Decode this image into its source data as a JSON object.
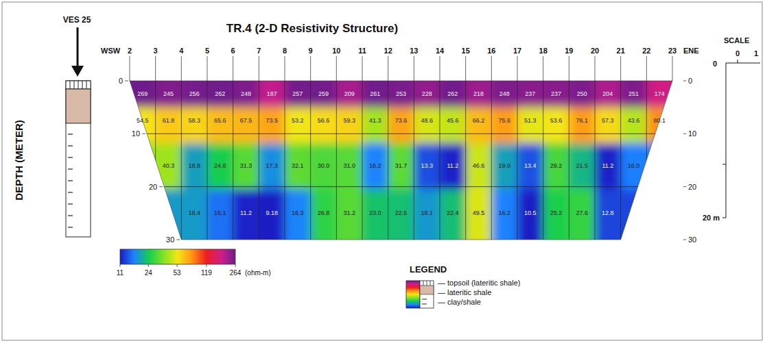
{
  "chart_data": {
    "type": "contour",
    "title": "TR.4 (2-D Resistivity Structure)",
    "y_label": "DEPTH (METER)",
    "x_left_label": "WSW",
    "x_right_label": "ENE",
    "xlim": [
      2,
      23
    ],
    "xticks": [
      2,
      3,
      4,
      5,
      6,
      7,
      8,
      9,
      10,
      11,
      12,
      13,
      14,
      15,
      16,
      17,
      18,
      19,
      20,
      21,
      22,
      23
    ],
    "ylim": [
      0,
      30
    ],
    "yticks": [
      0,
      10,
      20,
      30
    ],
    "y2lim": [
      0,
      30
    ],
    "y2ticks": [
      0,
      10,
      20,
      30
    ],
    "grid": true,
    "data_labels": true,
    "rows": [
      {
        "depth": 2.5,
        "x": [
          2.5,
          3.5,
          4.5,
          5.5,
          6.5,
          7.5,
          8.5,
          9.5,
          10.5,
          11.5,
          12.5,
          13.5,
          14.5,
          15.5,
          16.5,
          17.5,
          18.5,
          19.5,
          20.5,
          21.5,
          22.5
        ],
        "values": [
          269,
          245,
          256,
          262,
          248,
          187,
          257,
          259,
          209,
          261,
          253,
          228,
          262,
          218,
          248,
          237,
          237,
          250,
          204,
          251,
          174
        ]
      },
      {
        "depth": 7.5,
        "x": [
          2.5,
          3.5,
          4.5,
          5.5,
          6.5,
          7.5,
          8.5,
          9.5,
          10.5,
          11.5,
          12.5,
          13.5,
          14.5,
          15.5,
          16.5,
          17.5,
          18.5,
          19.5,
          20.5,
          21.5,
          22.5
        ],
        "values": [
          54.5,
          61.8,
          58.3,
          65.6,
          67.5,
          73.5,
          53.2,
          56.6,
          59.3,
          41.3,
          73.6,
          48.6,
          45.6,
          66.2,
          75.6,
          51.3,
          53.6,
          76.1,
          57.3,
          43.6,
          80.1
        ]
      },
      {
        "depth": 16,
        "x": [
          3.5,
          4.5,
          5.5,
          6.5,
          7.5,
          8.5,
          9.5,
          10.5,
          11.5,
          12.5,
          13.5,
          14.5,
          15.5,
          16.5,
          17.5,
          18.5,
          19.5,
          20.5,
          21.5
        ],
        "values": [
          40.3,
          18.8,
          24.8,
          31.3,
          17.3,
          32.1,
          30,
          31,
          16.2,
          31.7,
          13.3,
          11.2,
          46.6,
          19,
          13.4,
          29.2,
          21.5,
          11.2,
          16
        ],
        "value_labels": [
          "40.3",
          "18.8",
          "24.8",
          "31.3",
          "17.3",
          "32.1",
          "30.0",
          "31.0",
          "16.2",
          "31.7",
          "13.3",
          "11.2",
          "46.6",
          "19.0",
          "13.4",
          "29.2",
          "21.5",
          "11.2",
          "16.0"
        ]
      },
      {
        "depth": 25,
        "x": [
          4.5,
          5.5,
          6.5,
          7.5,
          8.5,
          9.5,
          10.5,
          11.5,
          12.5,
          13.5,
          14.5,
          15.5,
          16.5,
          17.5,
          18.5,
          19.5,
          20.5
        ],
        "values": [
          18.4,
          15.1,
          11.2,
          9.18,
          16.3,
          26.8,
          31.2,
          23,
          22.5,
          18.1,
          22.4,
          49.5,
          16.2,
          10.5,
          25.2,
          27.6,
          12.8
        ],
        "value_labels": [
          "18.4",
          "15.1",
          "11.2",
          "9.18",
          "16.3",
          "26.8",
          "31.2",
          "23.0",
          "22.5",
          "18.1",
          "22.4",
          "49.5",
          "16.2",
          "10.5",
          "25.2",
          "27.6",
          "12.8"
        ]
      }
    ],
    "colorbar": {
      "range": [
        11,
        264
      ],
      "ticks": [
        11,
        24,
        53,
        119,
        264
      ],
      "label": "(ohm-m)",
      "log": true
    },
    "legend": "bottom",
    "legend_title": "LEGEND",
    "legend_entries": [
      "— topsoil (lateritic shale)",
      "— lateritic shale",
      "— clay/shale"
    ],
    "annotations": {
      "ves": "VES 25",
      "scale_title": "SCALE",
      "scale_labels": [
        "0",
        "1",
        "0",
        "20 m"
      ]
    }
  }
}
